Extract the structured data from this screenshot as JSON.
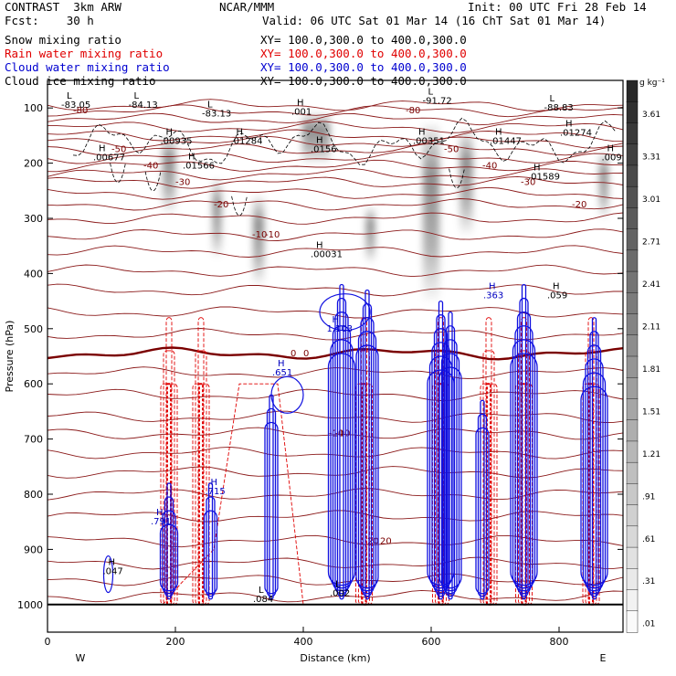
{
  "header": {
    "left_line1": "CONTRAST  3km ARW",
    "center_line1": "NCAR/MMM",
    "right_line1": "Init: 00 UTC Fri 28 Feb 14",
    "left_line2": "Fcst:    30 h",
    "right_line2": "Valid: 06 UTC Sat 01 Mar 14 (16 ChT Sat 01 Mar 14)",
    "fields": [
      {
        "name": "Snow mixing ratio",
        "xy": "XY= 100.0,300.0 to 400.0,300.0",
        "color": "#000000"
      },
      {
        "name": "Rain water mixing ratio",
        "xy": "XY= 100.0,300.0 to 400.0,300.0",
        "color": "#e00000"
      },
      {
        "name": "Cloud water mixing ratio",
        "xy": "XY= 100.0,300.0 to 400.0,300.0",
        "color": "#0000d0"
      },
      {
        "name": "Cloud ice mixing ratio",
        "xy": "XY= 100.0,300.0 to 400.0,300.0",
        "color": "#000000"
      }
    ]
  },
  "chart_data": {
    "type": "contour",
    "title": "Cross section: snow, rain water, cloud water, cloud ice mixing ratio",
    "xlabel": "Distance (km)",
    "ylabel": "Pressure (hPa)",
    "xlim": [
      0,
      900
    ],
    "ylim": [
      1050,
      50
    ],
    "x_ticks": [
      0,
      200,
      400,
      600,
      800
    ],
    "y_ticks": [
      100,
      200,
      300,
      400,
      500,
      600,
      700,
      800,
      900,
      1000
    ],
    "x_end_labels": {
      "left": "W",
      "right": "E"
    },
    "colorbar": {
      "unit": "g kg⁻¹",
      "labels": [
        "3.61",
        "3.31",
        "3.01",
        "2.71",
        "2.41",
        "2.11",
        "1.81",
        "1.51",
        "1.21",
        ".91",
        ".61",
        ".31",
        ".01"
      ]
    },
    "temperature_contours": [
      {
        "label": "-80",
        "p": 105
      },
      {
        "label": "-50",
        "p": 175
      },
      {
        "label": "-40",
        "p": 205
      },
      {
        "label": "-30",
        "p": 235
      },
      {
        "label": "-20",
        "p": 275
      },
      {
        "label": "-10",
        "p": 330
      },
      {
        "label": "0",
        "p": 545
      },
      {
        "label": "-10",
        "p": 690
      },
      {
        "label": "20",
        "p": 885
      }
    ],
    "extrema_labels": [
      {
        "text": "L",
        "value": "-83.05",
        "x": 30,
        "p": 100
      },
      {
        "text": "L",
        "value": "-84.13",
        "x": 135,
        "p": 100
      },
      {
        "text": "L",
        "value": "-83.13",
        "x": 250,
        "p": 115
      },
      {
        "text": "H",
        "value": ".001",
        "x": 390,
        "p": 112
      },
      {
        "text": "L",
        "value": "-91.72",
        "x": 595,
        "p": 92
      },
      {
        "text": "L",
        "value": "-88.83",
        "x": 785,
        "p": 105
      },
      {
        "text": "H",
        "value": ".01274",
        "x": 810,
        "p": 150
      },
      {
        "text": "H",
        "value": ".00935",
        "x": 185,
        "p": 165
      },
      {
        "text": "H",
        "value": ".01284",
        "x": 295,
        "p": 165
      },
      {
        "text": "H",
        "value": ".0156",
        "x": 420,
        "p": 180
      },
      {
        "text": "H",
        "value": ".00351",
        "x": 580,
        "p": 165
      },
      {
        "text": "H",
        "value": ".01447",
        "x": 700,
        "p": 165
      },
      {
        "text": "H",
        "value": ".00677",
        "x": 80,
        "p": 195
      },
      {
        "text": "H",
        "value": ".01566",
        "x": 220,
        "p": 210
      },
      {
        "text": "H",
        "value": ".009",
        "x": 875,
        "p": 195
      },
      {
        "text": "H",
        "value": ".01589",
        "x": 760,
        "p": 230
      },
      {
        "text": "H",
        "value": ".00031",
        "x": 420,
        "p": 370
      },
      {
        "text": "H",
        "value": ".363",
        "x": 690,
        "p": 445
      },
      {
        "text": "H",
        "value": ".059",
        "x": 790,
        "p": 445
      },
      {
        "text": "H",
        "value": "1.103",
        "x": 445,
        "p": 505
      },
      {
        "text": "H",
        "value": ".651",
        "x": 360,
        "p": 585
      },
      {
        "text": "H",
        "value": ".791",
        "x": 170,
        "p": 855
      },
      {
        "text": "H",
        "value": ".715",
        "x": 255,
        "p": 800
      },
      {
        "text": "H",
        "value": ".047",
        "x": 95,
        "p": 945
      },
      {
        "text": "L",
        "value": ".084",
        "x": 330,
        "p": 995
      },
      {
        "text": "L",
        "value": ".002",
        "x": 450,
        "p": 985
      }
    ],
    "cloud_water_columns_km": [
      190,
      255,
      350,
      460,
      500,
      615,
      630,
      680,
      745,
      855
    ],
    "rain_columns_km": [
      190,
      240,
      495,
      615,
      690,
      745,
      850
    ]
  }
}
